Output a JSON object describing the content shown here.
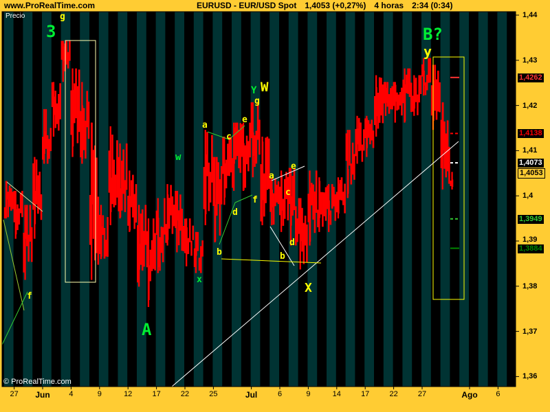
{
  "header": {
    "site": "www.ProRealTime.com",
    "title": "EURUSD - EUR/USD Spot",
    "last": "1,4053 (+0,27%)",
    "period": "4 horas",
    "time": "2:34 (0:34)"
  },
  "panel_label": "Precio",
  "copyright": "© ProRealTime.com",
  "colors": {
    "background": "#ffcc33",
    "stripe_a": "#003333",
    "stripe_b": "#000000",
    "bars": "#ff0000",
    "trendline": "#ffffff"
  },
  "chart_data": {
    "type": "bar",
    "subtype": "4-hour price bars (daily ranges approximated)",
    "ylim": [
      1.36,
      1.44
    ],
    "y_ticks": [
      "1,44",
      "1,43",
      "1,42",
      "1,41",
      "1,4",
      "1,39",
      "1,38",
      "1,37",
      "1,36"
    ],
    "x_ticks": [
      {
        "label": "27",
        "day": 1
      },
      {
        "label": "Jun",
        "day": 4,
        "bold": true
      },
      {
        "label": "4",
        "day": 7
      },
      {
        "label": "9",
        "day": 10
      },
      {
        "label": "12",
        "day": 13
      },
      {
        "label": "17",
        "day": 16
      },
      {
        "label": "22",
        "day": 19
      },
      {
        "label": "25",
        "day": 22
      },
      {
        "label": "Jul",
        "day": 26,
        "bold": true
      },
      {
        "label": "6",
        "day": 29
      },
      {
        "label": "9",
        "day": 32
      },
      {
        "label": "14",
        "day": 35
      },
      {
        "label": "17",
        "day": 38
      },
      {
        "label": "22",
        "day": 41
      },
      {
        "label": "27",
        "day": 44
      },
      {
        "label": "Ago",
        "day": 49,
        "bold": true
      },
      {
        "label": "6",
        "day": 52
      }
    ],
    "days": [
      [
        "05-26",
        1.395,
        1.4033
      ],
      [
        "05-27",
        1.3905,
        1.4011
      ],
      [
        "05-28",
        1.3814,
        1.398
      ],
      [
        "05-29",
        1.3905,
        1.4086
      ],
      [
        "06-01",
        1.4071,
        1.4192
      ],
      [
        "06-02",
        1.4131,
        1.4252
      ],
      [
        "06-03",
        1.4252,
        1.4343
      ],
      [
        "06-04",
        1.4086,
        1.4282
      ],
      [
        "06-05",
        1.4071,
        1.4252
      ],
      [
        "06-08",
        1.3814,
        1.4162
      ],
      [
        "06-09",
        1.386,
        1.398
      ],
      [
        "06-10",
        1.3935,
        1.4154
      ],
      [
        "06-11",
        1.395,
        1.4116
      ],
      [
        "06-12",
        1.392,
        1.4056
      ],
      [
        "06-15",
        1.3799,
        1.398
      ],
      [
        "06-16",
        1.3754,
        1.395
      ],
      [
        "06-17",
        1.3829,
        1.3995
      ],
      [
        "06-18",
        1.389,
        1.4026
      ],
      [
        "06-19",
        1.3875,
        1.4011
      ],
      [
        "06-22",
        1.3844,
        1.395
      ],
      [
        "06-23",
        1.3829,
        1.392
      ],
      [
        "06-24",
        1.3935,
        1.4146
      ],
      [
        "06-25",
        1.3897,
        1.4086
      ],
      [
        "06-26",
        1.398,
        1.4131
      ],
      [
        "06-29",
        1.4011,
        1.4162
      ],
      [
        "06-30",
        1.4011,
        1.4162
      ],
      [
        "07-01",
        1.4041,
        1.4207
      ],
      [
        "07-02",
        1.3935,
        1.4131
      ],
      [
        "07-03",
        1.3935,
        1.4041
      ],
      [
        "07-06",
        1.392,
        1.4056
      ],
      [
        "07-07",
        1.389,
        1.4062
      ],
      [
        "07-08",
        1.3837,
        1.3995
      ],
      [
        "07-09",
        1.389,
        1.4056
      ],
      [
        "07-10",
        1.392,
        1.4041
      ],
      [
        "07-13",
        1.392,
        1.4026
      ],
      [
        "07-14",
        1.395,
        1.4041
      ],
      [
        "07-15",
        1.3995,
        1.4146
      ],
      [
        "07-16",
        1.4071,
        1.4177
      ],
      [
        "07-17",
        1.4086,
        1.4177
      ],
      [
        "07-20",
        1.4131,
        1.4267
      ],
      [
        "07-21",
        1.4177,
        1.4252
      ],
      [
        "07-22",
        1.4162,
        1.4252
      ],
      [
        "07-23",
        1.4162,
        1.4282
      ],
      [
        "07-24",
        1.4177,
        1.4267
      ],
      [
        "07-27",
        1.4222,
        1.4305
      ],
      [
        "07-28",
        1.4146,
        1.429
      ],
      [
        "07-29",
        1.4014,
        1.4207
      ],
      [
        "07-30",
        1.4014,
        1.4053
      ]
    ],
    "price_levels": [
      {
        "value": 1.4262,
        "label": "1,4262",
        "color": "#ff3333",
        "style": "solid"
      },
      {
        "value": 1.4138,
        "label": "1,4138",
        "color": "#ff0000",
        "style": "dashed"
      },
      {
        "value": 1.4073,
        "label": "1,4073",
        "color": "#ffffff",
        "style": "dashed"
      },
      {
        "value": 1.4053,
        "label": "1,4053",
        "color": "#000000",
        "style": "last",
        "bg": "#ffcc33"
      },
      {
        "value": 1.3949,
        "label": "1,3949",
        "color": "#33cc33",
        "style": "dashed"
      },
      {
        "value": 1.3884,
        "label": "1,3884",
        "color": "#008800",
        "style": "solid"
      }
    ],
    "annotations": {
      "wave_3": "3",
      "wave_g_top": "g",
      "wave_A": "A",
      "wave_B": "B?",
      "wave_y": "y",
      "wave_X": "X",
      "w_small": "w",
      "x_small": "x",
      "Y": "Y",
      "W": "W",
      "g": "g",
      "f_left": "f",
      "a1": "a",
      "c1": "c",
      "e1": "e",
      "b1": "b",
      "d1": "d",
      "f1": "f",
      "a2": "a",
      "c2": "c",
      "e2": "e",
      "b2": "b",
      "d2": "d"
    }
  }
}
